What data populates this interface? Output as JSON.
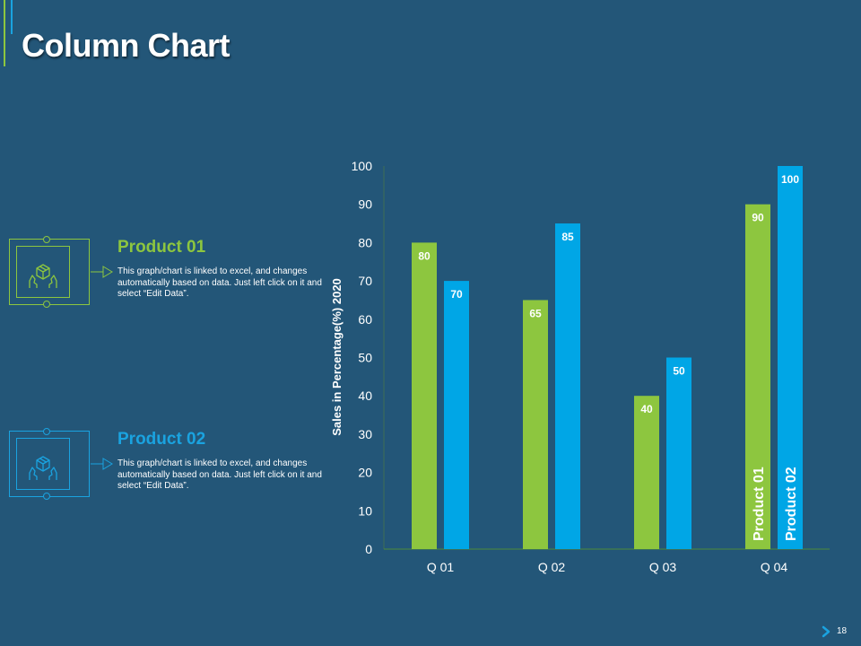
{
  "slide": {
    "title": "Column Chart",
    "page_number": "18"
  },
  "products": [
    {
      "name": "Product 01",
      "description": "This graph/chart is linked to excel, and changes automatically based on data. Just left click on it and select “Edit Data”.",
      "icon": "hands-holding-box-icon",
      "color": "#8dc63f"
    },
    {
      "name": "Product 02",
      "description": "This graph/chart is linked to excel, and changes automatically based on data. Just left click on it and select “Edit Data”.",
      "icon": "hands-holding-box-icon",
      "color": "#1aa3e0"
    }
  ],
  "chart_data": {
    "type": "bar",
    "title": "",
    "xlabel": "",
    "ylabel": "Sales in Percentage(%) 2020",
    "categories": [
      "Q 01",
      "Q 02",
      "Q 03",
      "Q 04"
    ],
    "series": [
      {
        "name": "Product 01",
        "values": [
          80,
          65,
          40,
          90
        ],
        "color": "#8dc63f"
      },
      {
        "name": "Product 02",
        "values": [
          70,
          85,
          50,
          100
        ],
        "color": "#00a6e6"
      }
    ],
    "ylim": [
      0,
      100
    ],
    "yticks": [
      0,
      10,
      20,
      30,
      40,
      50,
      60,
      70,
      80,
      90,
      100
    ],
    "legend": "inside-last-category",
    "grid": false
  }
}
